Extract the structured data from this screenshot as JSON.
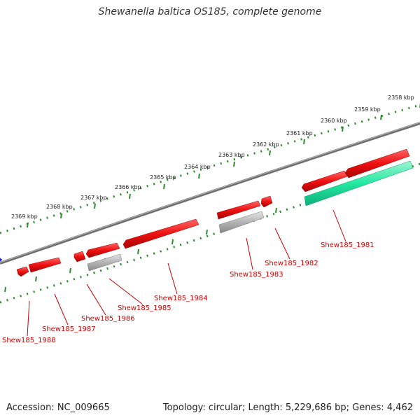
{
  "title": "Shewanella baltica OS185, complete genome",
  "footer": {
    "accession": "Accession: NC_009665",
    "summary": "Topology: circular; Length: 5,229,686 bp; Genes: 4,462"
  },
  "colors": {
    "backbone": "#7a7a7a",
    "tick_ring": "#2e8b2e",
    "cds": "#ee1111",
    "pseudo": "#b0b0b0",
    "rna": "#22e8a0",
    "other": "#1111dd",
    "label": "#cc0000"
  },
  "ticks": [
    "2358 kbp",
    "2359 kbp",
    "2360 kbp",
    "2361 kbp",
    "2362 kbp",
    "2363 kbp",
    "2364 kbp",
    "2365 kbp",
    "2366 kbp",
    "2367 kbp",
    "2368 kbp",
    "2369 kbp"
  ],
  "genes": [
    {
      "id": "g-1981",
      "label": "Shew185_1981"
    },
    {
      "id": "g-1982",
      "label": "Shew185_1982"
    },
    {
      "id": "g-1983",
      "label": "Shew185_1983"
    },
    {
      "id": "g-1984",
      "label": "Shew185_1984"
    },
    {
      "id": "g-1985",
      "label": "Shew185_1985"
    },
    {
      "id": "g-1986",
      "label": "Shew185_1986"
    },
    {
      "id": "g-1987",
      "label": "Shew185_1987"
    },
    {
      "id": "g-1988",
      "label": "Shew185_1988"
    }
  ]
}
